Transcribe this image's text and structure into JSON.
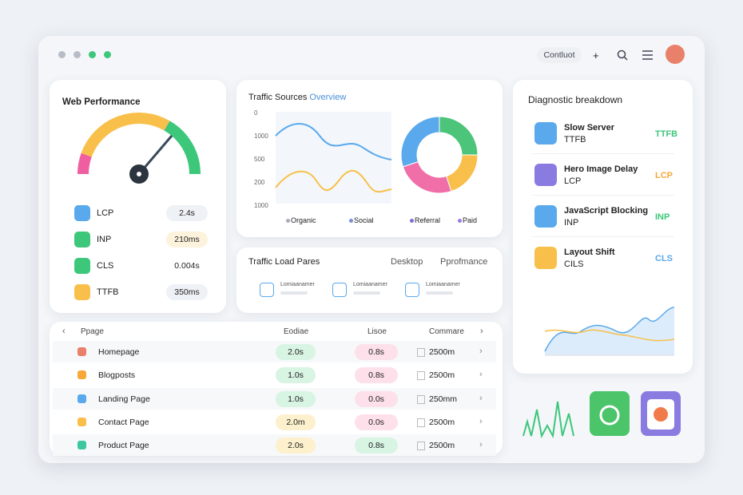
{
  "window": {
    "nav_label": "Contluot"
  },
  "web_performance": {
    "title": "Web Performance",
    "metrics": [
      {
        "name": "LCP",
        "value": "2.4s"
      },
      {
        "name": "INP",
        "value": "210ms"
      },
      {
        "name": "CLS",
        "value": "0.004s"
      },
      {
        "name": "TTFB",
        "value": "350ms"
      }
    ]
  },
  "traffic_sources": {
    "title": "Traffic Sources",
    "title_accent": "Overview",
    "y_labels": [
      "0",
      "1000",
      "500",
      "200",
      "1000"
    ],
    "legend": [
      "Organic",
      "Social",
      "Referral",
      "Paid"
    ],
    "donut": [
      {
        "color": "#4cc47a",
        "value": 25
      },
      {
        "color": "#f8c04a",
        "value": 20
      },
      {
        "color": "#f06fa8",
        "value": 25
      },
      {
        "color": "#5aa9ec",
        "value": 30
      }
    ]
  },
  "traffic_load": {
    "title": "Traffic Load Pares",
    "tabs": [
      "Desktop",
      "Pprofmance"
    ],
    "items": [
      "Lomiaanamer",
      "Lomiaanamer",
      "Lomiaanamer"
    ]
  },
  "diagnostic": {
    "title": "Diagnostic breakdown",
    "items": [
      {
        "title": "Slow Server",
        "metric": "TTFB",
        "tag": "TTFB"
      },
      {
        "title": "Hero Image Delay",
        "metric": "LCP",
        "tag": "LCP"
      },
      {
        "title": "JavaScript Blocking",
        "metric": "INP",
        "tag": "INP"
      },
      {
        "title": "Layout Shift",
        "metric": "CILS",
        "tag": "CLS"
      }
    ]
  },
  "table": {
    "header": [
      "Ppage",
      "Eodiae",
      "Lisoe",
      "Commare"
    ],
    "rows": [
      [
        "Homepage",
        "2.0s",
        "0.8s",
        "2500m"
      ],
      [
        "Blogposts",
        "1.0s",
        "0.8s",
        "2500m"
      ],
      [
        "Landing Page",
        "1.0s",
        "0.0s",
        "250mm"
      ],
      [
        "Contact Page",
        "2.0m",
        "0.0s",
        "2500m"
      ],
      [
        "Product Page",
        "2.0s",
        "0.8s",
        "2500m"
      ]
    ]
  }
}
